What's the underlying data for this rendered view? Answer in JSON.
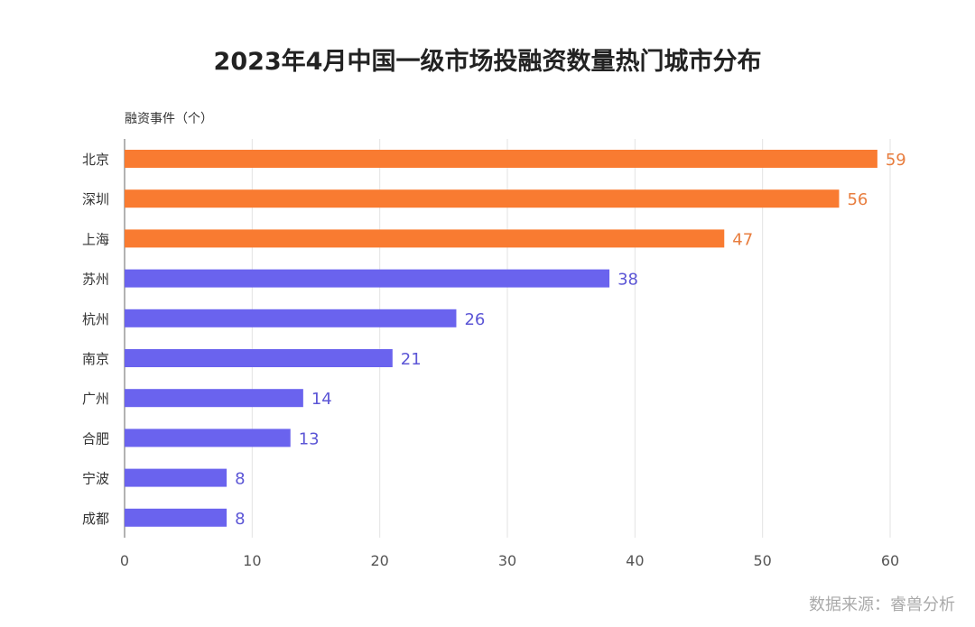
{
  "chart_data": {
    "type": "bar",
    "orientation": "horizontal",
    "title": "2023年4月中国一级市场投融资数量热门城市分布",
    "ylabel": "融资事件（个）",
    "xlabel": "",
    "categories": [
      "北京",
      "深圳",
      "上海",
      "苏州",
      "杭州",
      "南京",
      "广州",
      "合肥",
      "宁波",
      "成都"
    ],
    "values": [
      59,
      56,
      47,
      38,
      26,
      21,
      14,
      13,
      8,
      8
    ],
    "xlim": [
      0,
      60
    ],
    "xticks": [
      "0",
      "10",
      "20",
      "30",
      "40",
      "50",
      "60"
    ],
    "grid": true,
    "colors": {
      "highlight": "#F97B31",
      "normal": "#6A63EE",
      "highlight_label": "#E87D3E",
      "normal_label": "#5C56D6"
    },
    "highlight_count": 3
  },
  "source": "数据来源：睿兽分析"
}
